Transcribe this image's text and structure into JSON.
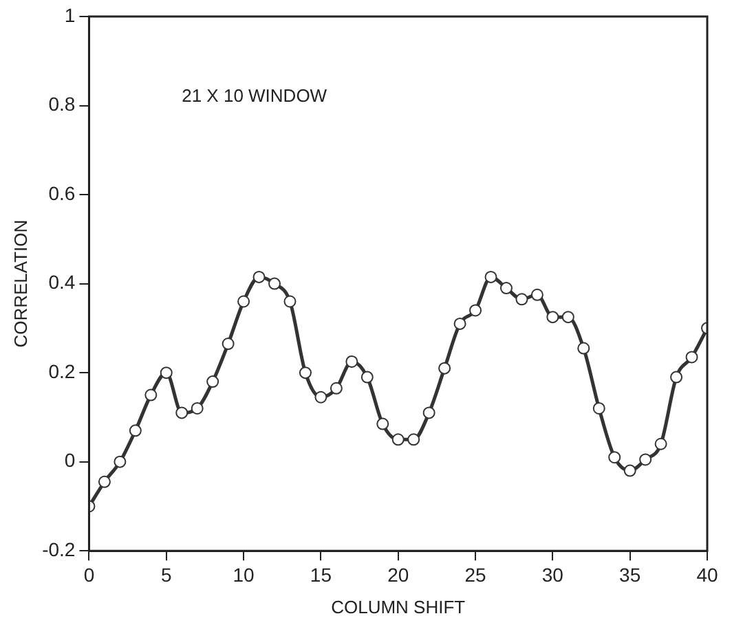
{
  "chart_data": {
    "type": "line",
    "xlabel": "COLUMN SHIFT",
    "ylabel": "CORRELATION",
    "annotations": [
      "21 X 10 WINDOW"
    ],
    "x": [
      0,
      1,
      2,
      3,
      4,
      5,
      6,
      7,
      8,
      9,
      10,
      11,
      12,
      13,
      14,
      15,
      16,
      17,
      18,
      19,
      20,
      21,
      22,
      23,
      24,
      25,
      26,
      27,
      28,
      29,
      30,
      31,
      32,
      33,
      34,
      35,
      36,
      37,
      38,
      39,
      40
    ],
    "series": [
      {
        "color": "#333333",
        "values": [
          -0.1,
          -0.045,
          0.0,
          0.07,
          0.15,
          0.2,
          0.11,
          0.12,
          0.18,
          0.265,
          0.36,
          0.415,
          0.4,
          0.36,
          0.2,
          0.145,
          0.165,
          0.225,
          0.19,
          0.085,
          0.05,
          0.05,
          0.11,
          0.21,
          0.31,
          0.34,
          0.415,
          0.39,
          0.365,
          0.375,
          0.325,
          0.325,
          0.255,
          0.12,
          0.01,
          -0.02,
          0.005,
          0.04,
          0.19,
          0.235,
          0.3
        ]
      }
    ],
    "xlim": [
      0,
      40
    ],
    "xticks": [
      0,
      5,
      10,
      15,
      20,
      25,
      30,
      35,
      40
    ],
    "ylim": [
      -0.2,
      1
    ],
    "yticks": [
      -0.2,
      0,
      0.2,
      0.4,
      0.6,
      0.8,
      1
    ],
    "grid": false,
    "legend": false,
    "marker": "circle",
    "line_style": "solid"
  }
}
